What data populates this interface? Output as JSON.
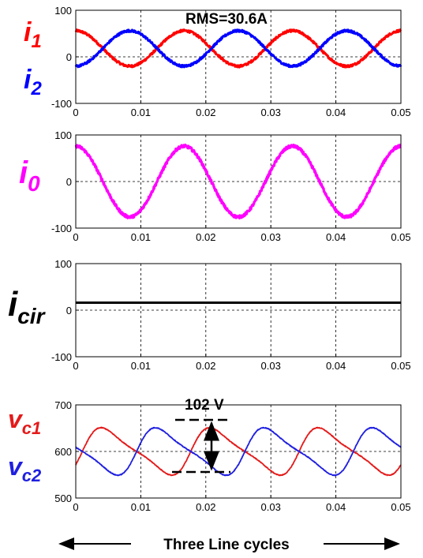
{
  "colors": {
    "i1": "#ff0000",
    "i2": "#0000ff",
    "i0": "#ff00ff",
    "icir": "#000000",
    "vc1": "#e41a1a",
    "vc2": "#1f1fe0"
  },
  "labels": {
    "i1": {
      "main": "i",
      "sub": "1"
    },
    "i2": {
      "main": "i",
      "sub": "2"
    },
    "i0": {
      "main": "i",
      "sub": "0"
    },
    "icir": {
      "main": "i",
      "sub": "cir"
    },
    "vc1": {
      "main": "v",
      "sub": "c1"
    },
    "vc2": {
      "main": "v",
      "sub": "c2"
    }
  },
  "annotations": {
    "rms": "RMS=30.6A",
    "ripple": "102 V",
    "footer": "Three Line cycles"
  },
  "chart_data": [
    {
      "type": "line",
      "xlim": [
        0,
        0.05
      ],
      "ylim": [
        -100,
        100
      ],
      "xticks": [
        "0",
        "0.01",
        "0.02",
        "0.03",
        "0.04",
        "0.05"
      ],
      "yticks": [
        "100",
        "0",
        "-100"
      ],
      "grid": true,
      "annotation": "RMS=30.6A",
      "series": [
        {
          "key": "i1",
          "waveform": "sine",
          "offset": 18,
          "amplitude": 38,
          "frequency_hz": 60,
          "phase_deg": 90,
          "noise": 2.5
        },
        {
          "key": "i2",
          "waveform": "sine",
          "offset": 18,
          "amplitude": 38,
          "frequency_hz": 60,
          "phase_deg": -90,
          "noise": 2.5
        }
      ]
    },
    {
      "type": "line",
      "xlim": [
        0,
        0.05
      ],
      "ylim": [
        -100,
        100
      ],
      "xticks": [
        "0",
        "0.01",
        "0.02",
        "0.03",
        "0.04",
        "0.05"
      ],
      "yticks": [
        "100",
        "0",
        "-100"
      ],
      "grid": true,
      "series": [
        {
          "key": "i0",
          "waveform": "sine",
          "offset": 0,
          "amplitude": 76,
          "frequency_hz": 60,
          "phase_deg": 90,
          "noise": 3
        }
      ]
    },
    {
      "type": "line",
      "xlim": [
        0,
        0.05
      ],
      "ylim": [
        -100,
        100
      ],
      "xticks": [
        "0",
        "0.01",
        "0.02",
        "0.03",
        "0.04",
        "0.05"
      ],
      "yticks": [
        "100",
        "0",
        "-100"
      ],
      "grid": true,
      "series": [
        {
          "key": "icir",
          "waveform": "dc",
          "offset": 16,
          "amplitude": 0,
          "frequency_hz": 60,
          "phase_deg": 0,
          "noise": 0
        }
      ]
    },
    {
      "type": "line",
      "xlim": [
        0,
        0.05
      ],
      "ylim": [
        500,
        700
      ],
      "xticks": [
        "0",
        "0.01",
        "0.02",
        "0.03",
        "0.04",
        "0.05"
      ],
      "yticks": [
        "700",
        "600",
        "500"
      ],
      "grid": true,
      "annotation": "102 V",
      "series": [
        {
          "key": "vc1",
          "waveform": "skewed",
          "offset": 600,
          "amplitude": 51,
          "frequency_hz": 60,
          "phase_deg": -22,
          "noise": 0.8
        },
        {
          "key": "vc2",
          "waveform": "skewed",
          "offset": 600,
          "amplitude": 51,
          "frequency_hz": 60,
          "phase_deg": 158,
          "noise": 0.8
        }
      ]
    }
  ]
}
